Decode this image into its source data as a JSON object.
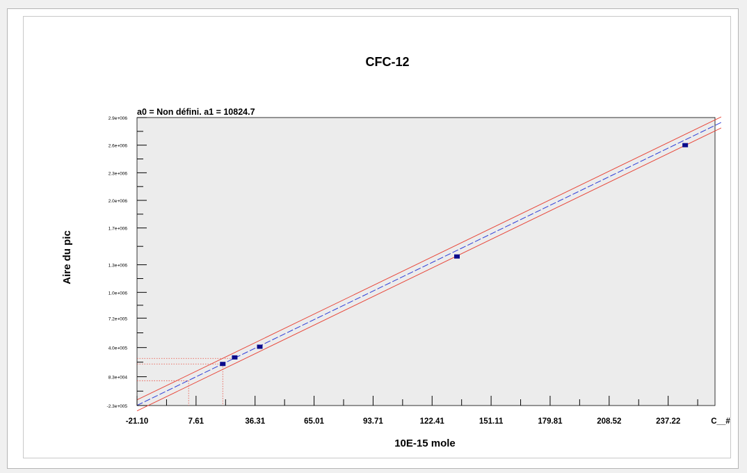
{
  "colors": {
    "plot_background": "#ececec",
    "fit_line": "#2b3bd8",
    "confidence_band": "#e8473a",
    "reference_lines": "#e8473a",
    "points": "#0b0b8c",
    "axis": "#000000"
  },
  "chart_data": {
    "type": "scatter",
    "title": "CFC-12",
    "subtitle": "a0 = Non défini. a1 = 10824.7",
    "xlabel": "10E-15 mole",
    "ylabel": "Aire du pic",
    "xlim": [
      -21.1,
      260
    ],
    "ylim": [
      -230000,
      2900000
    ],
    "x_tick_values": [
      -21.1,
      7.61,
      36.31,
      65.01,
      93.71,
      122.41,
      151.11,
      179.81,
      208.52,
      237.22
    ],
    "x_tick_labels": [
      "-21.10",
      "7.61",
      "36.31",
      "65.01",
      "93.71",
      "122.41",
      "151.11",
      "179.81",
      "208.52",
      "237.22"
    ],
    "x_end_label": "C__#",
    "y_tick_values": [
      -230000,
      83000,
      400000,
      720000,
      1000000,
      1300000,
      1700000,
      2000000,
      2300000,
      2600000,
      2900000
    ],
    "y_tick_labels": [
      "-2.3e+005",
      "8.3e+004",
      "4.0e+005",
      "7.2e+005",
      "1.0e+006",
      "1.3e+006",
      "1.7e+006",
      "2.0e+006",
      "2.3e+006",
      "2.6e+006",
      "2.9e+006"
    ],
    "grid": false,
    "series": [
      {
        "points": [
          {
            "x": 20.6,
            "y": 222000
          },
          {
            "x": 26.4,
            "y": 293000
          },
          {
            "x": 38.6,
            "y": 409000
          },
          {
            "x": 134.5,
            "y": 1390000
          },
          {
            "x": 245.5,
            "y": 2600000
          }
        ]
      }
    ],
    "fit_line": {
      "slope": 10824.7,
      "intercept": 0,
      "x_range": [
        -21.1,
        263
      ]
    },
    "confidence_offset": 60000,
    "reference_lines": [
      {
        "x": 20.6,
        "y": 222000
      },
      {
        "x": 4.0,
        "y": 40000
      }
    ]
  }
}
